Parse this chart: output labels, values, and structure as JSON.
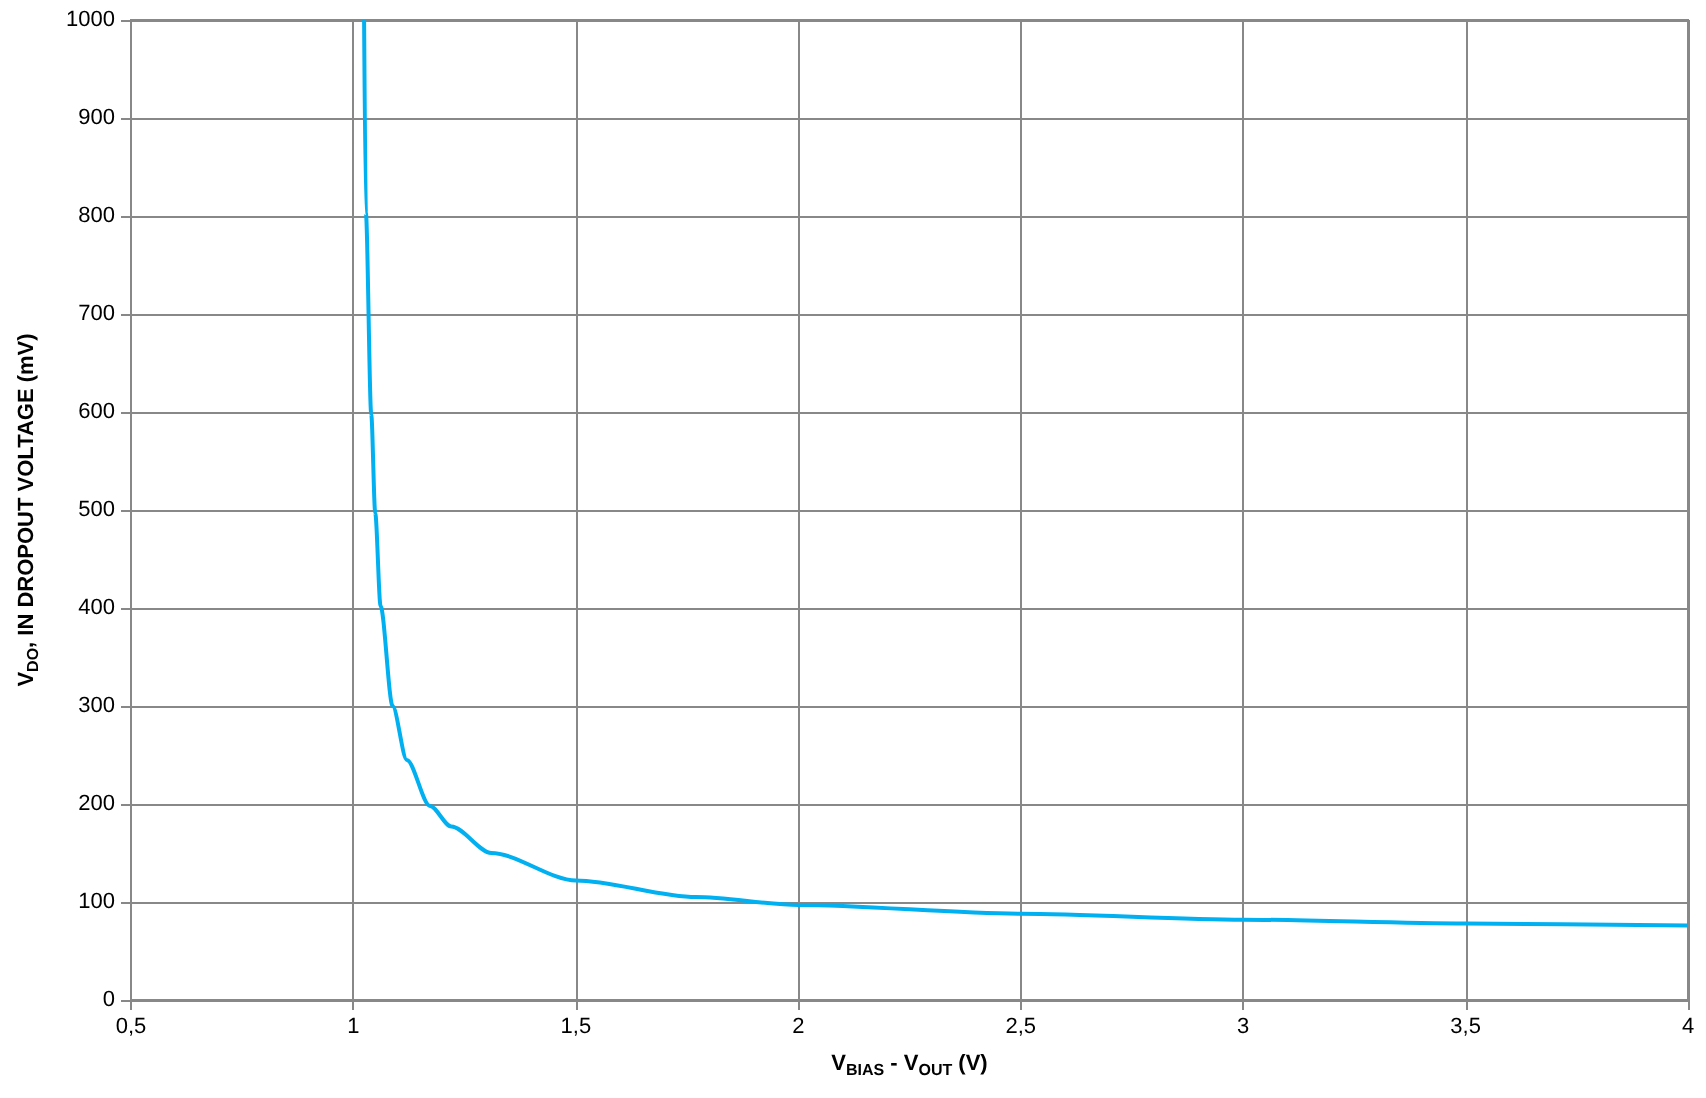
{
  "chart_data": {
    "type": "line",
    "xlabel": "V$_{BIAS}$ - V$_{OUT}$ (V)",
    "ylabel": "V$_{DO}$, IN DROPOUT VOLTAGE (mV)",
    "series": [
      {
        "color": "#00b0f0",
        "x": [
          1.024,
          1.028,
          1.04,
          1.049,
          1.061,
          1.088,
          1.12,
          1.172,
          1.22,
          1.31,
          1.5,
          1.77,
          2,
          2.5,
          3,
          3.5,
          4
        ],
        "values": [
          1000,
          803,
          598,
          497,
          402,
          300,
          245,
          198,
          177,
          150,
          122,
          105,
          97,
          88,
          82,
          78,
          76
        ]
      }
    ],
    "xlim": [
      0.5,
      4
    ],
    "xticks": [
      {
        "value": 0.5,
        "label": "0,5"
      },
      1,
      {
        "value": 1.5,
        "label": "1,5"
      },
      2,
      {
        "value": 2.5,
        "label": "2,5"
      },
      3,
      {
        "value": 3.5,
        "label": "3,5"
      },
      4
    ],
    "ylim": [
      0,
      1000
    ],
    "yticks": [
      0,
      100,
      200,
      300,
      400,
      500,
      600,
      700,
      800,
      900,
      1000
    ],
    "grid": true,
    "marker": "none",
    "line_style": "solid"
  }
}
